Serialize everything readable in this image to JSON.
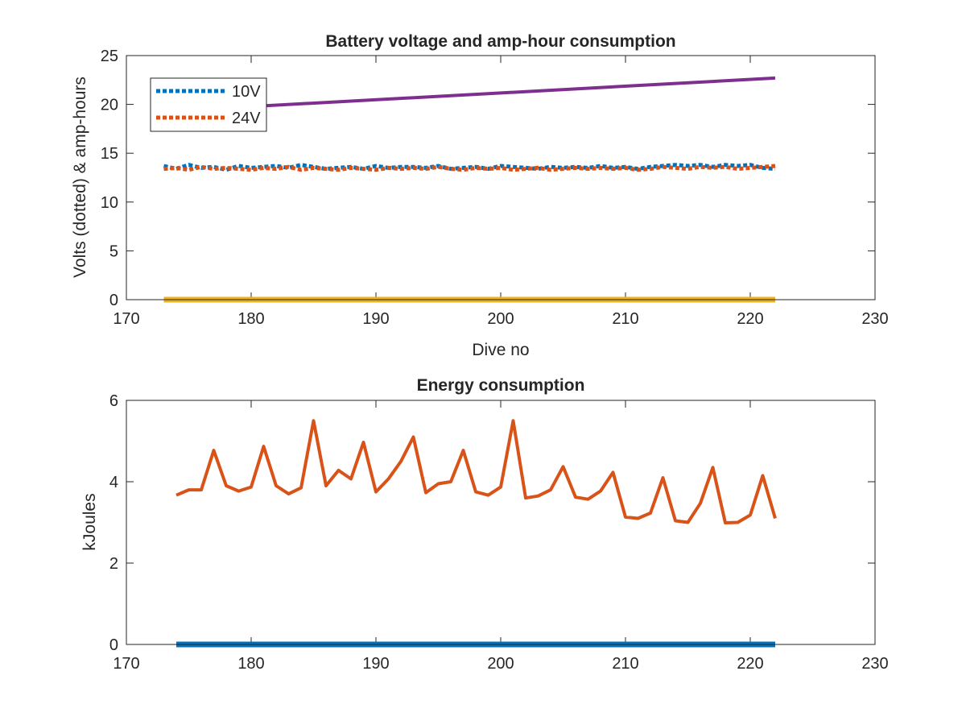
{
  "chart_data": [
    {
      "type": "line",
      "title": "Battery voltage and amp-hour consumption",
      "xlabel": "Dive no",
      "ylabel": "Volts (dotted) & amp-hours",
      "xlim": [
        170,
        230
      ],
      "ylim": [
        0,
        25
      ],
      "xticks": [
        "170",
        "180",
        "190",
        "200",
        "210",
        "220",
        "230"
      ],
      "yticks": [
        "0",
        "5",
        "10",
        "15",
        "20",
        "25"
      ],
      "legend_position": "top-left",
      "series": [
        {
          "name": "10V",
          "style": "dotted",
          "color": "#0072BD",
          "x": [
            173,
            174,
            175,
            176,
            177,
            178,
            179,
            180,
            181,
            182,
            183,
            184,
            185,
            186,
            187,
            188,
            189,
            190,
            191,
            192,
            193,
            194,
            195,
            196,
            197,
            198,
            199,
            200,
            201,
            202,
            203,
            204,
            205,
            206,
            207,
            208,
            209,
            210,
            211,
            212,
            213,
            214,
            215,
            216,
            217,
            218,
            219,
            220,
            221,
            222
          ],
          "y": [
            13.7,
            13.4,
            13.8,
            13.5,
            13.6,
            13.3,
            13.7,
            13.5,
            13.6,
            13.7,
            13.5,
            13.8,
            13.6,
            13.4,
            13.5,
            13.6,
            13.4,
            13.7,
            13.5,
            13.6,
            13.6,
            13.5,
            13.7,
            13.4,
            13.5,
            13.6,
            13.4,
            13.7,
            13.6,
            13.5,
            13.4,
            13.6,
            13.5,
            13.6,
            13.5,
            13.7,
            13.5,
            13.6,
            13.4,
            13.6,
            13.7,
            13.8,
            13.7,
            13.8,
            13.6,
            13.8,
            13.7,
            13.8,
            13.5,
            13.4
          ]
        },
        {
          "name": "24V",
          "style": "dotted",
          "color": "#D95319",
          "x": [
            173,
            174,
            175,
            176,
            177,
            178,
            179,
            180,
            181,
            182,
            183,
            184,
            185,
            186,
            187,
            188,
            189,
            190,
            191,
            192,
            193,
            194,
            195,
            196,
            197,
            198,
            199,
            200,
            201,
            202,
            203,
            204,
            205,
            206,
            207,
            208,
            209,
            210,
            211,
            212,
            213,
            214,
            215,
            216,
            217,
            218,
            219,
            220,
            221,
            222
          ],
          "y": [
            13.4,
            13.5,
            13.3,
            13.6,
            13.4,
            13.5,
            13.4,
            13.3,
            13.5,
            13.4,
            13.6,
            13.3,
            13.5,
            13.4,
            13.3,
            13.5,
            13.4,
            13.3,
            13.5,
            13.4,
            13.5,
            13.4,
            13.6,
            13.4,
            13.3,
            13.5,
            13.4,
            13.5,
            13.3,
            13.4,
            13.5,
            13.3,
            13.4,
            13.5,
            13.4,
            13.5,
            13.4,
            13.5,
            13.3,
            13.4,
            13.6,
            13.5,
            13.4,
            13.6,
            13.5,
            13.6,
            13.4,
            13.5,
            13.6,
            13.7
          ]
        },
        {
          "name": "",
          "style": "solid",
          "color": "#7E2F8E",
          "x": [
            173,
            222
          ],
          "y": [
            19.3,
            22.7
          ]
        },
        {
          "name": "",
          "style": "solid",
          "color": "#EDB120",
          "x": [
            173,
            222
          ],
          "y": [
            0,
            0
          ]
        }
      ]
    },
    {
      "type": "line",
      "title": "Energy consumption",
      "xlabel": "",
      "ylabel": "kJoules",
      "xlim": [
        170,
        230
      ],
      "ylim": [
        0,
        6
      ],
      "xticks": [
        "170",
        "180",
        "190",
        "200",
        "210",
        "220",
        "230"
      ],
      "yticks": [
        "0",
        "2",
        "4",
        "6"
      ],
      "series": [
        {
          "name": "",
          "style": "solid",
          "color": "#D95319",
          "x": [
            174,
            175,
            176,
            177,
            178,
            179,
            180,
            181,
            182,
            183,
            184,
            185,
            186,
            187,
            188,
            189,
            190,
            191,
            192,
            193,
            194,
            195,
            196,
            197,
            198,
            199,
            200,
            201,
            202,
            203,
            204,
            205,
            206,
            207,
            208,
            209,
            210,
            211,
            212,
            213,
            214,
            215,
            216,
            217,
            218,
            219,
            220,
            221,
            222
          ],
          "y": [
            3.67,
            3.8,
            3.8,
            4.77,
            3.9,
            3.77,
            3.87,
            4.87,
            3.9,
            3.7,
            3.85,
            5.5,
            3.9,
            4.28,
            4.07,
            4.97,
            3.75,
            4.07,
            4.5,
            5.1,
            3.73,
            3.95,
            4.0,
            4.77,
            3.75,
            3.67,
            3.87,
            5.5,
            3.6,
            3.65,
            3.8,
            4.37,
            3.62,
            3.57,
            3.77,
            4.23,
            3.13,
            3.1,
            3.23,
            4.1,
            3.04,
            3.0,
            3.47,
            4.35,
            2.99,
            3.0,
            3.18,
            4.15,
            3.1
          ]
        },
        {
          "name": "",
          "style": "solid",
          "color": "#0072BD",
          "x": [
            174,
            222
          ],
          "y": [
            0,
            0
          ]
        }
      ]
    }
  ]
}
